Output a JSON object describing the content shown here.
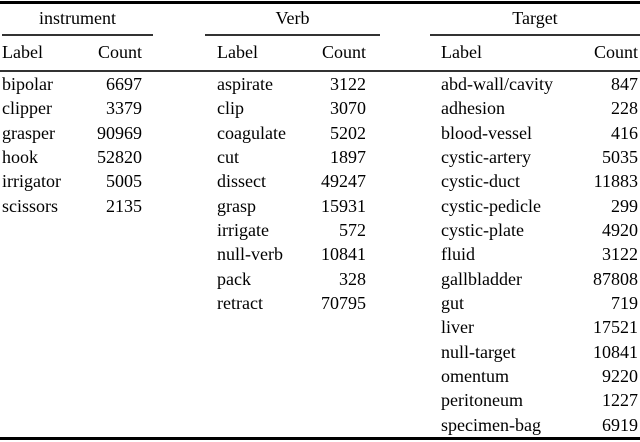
{
  "colors": {
    "background": "#ffffff",
    "text": "#000000",
    "thick_rule": "#000000",
    "thin_rule": "#333333"
  },
  "table": {
    "groups": [
      {
        "title": "instrument",
        "label_header": "Label",
        "count_header": "Count",
        "rows": [
          [
            "bipolar",
            "6697"
          ],
          [
            "clipper",
            "3379"
          ],
          [
            "grasper",
            "90969"
          ],
          [
            "hook",
            "52820"
          ],
          [
            "irrigator",
            "5005"
          ],
          [
            "scissors",
            "2135"
          ]
        ]
      },
      {
        "title": "Verb",
        "label_header": "Label",
        "count_header": "Count",
        "rows": [
          [
            "aspirate",
            "3122"
          ],
          [
            "clip",
            "3070"
          ],
          [
            "coagulate",
            "5202"
          ],
          [
            "cut",
            "1897"
          ],
          [
            "dissect",
            "49247"
          ],
          [
            "grasp",
            "15931"
          ],
          [
            "irrigate",
            "572"
          ],
          [
            "null-verb",
            "10841"
          ],
          [
            "pack",
            "328"
          ],
          [
            "retract",
            "70795"
          ]
        ]
      },
      {
        "title": "Target",
        "label_header": "Label",
        "count_header": "Count",
        "rows": [
          [
            "abd-wall/cavity",
            "847"
          ],
          [
            "adhesion",
            "228"
          ],
          [
            "blood-vessel",
            "416"
          ],
          [
            "cystic-artery",
            "5035"
          ],
          [
            "cystic-duct",
            "11883"
          ],
          [
            "cystic-pedicle",
            "299"
          ],
          [
            "cystic-plate",
            "4920"
          ],
          [
            "fluid",
            "3122"
          ],
          [
            "gallbladder",
            "87808"
          ],
          [
            "gut",
            "719"
          ],
          [
            "liver",
            "17521"
          ],
          [
            "null-target",
            "10841"
          ],
          [
            "omentum",
            "9220"
          ],
          [
            "peritoneum",
            "1227"
          ],
          [
            "specimen-bag",
            "6919"
          ]
        ]
      }
    ]
  }
}
